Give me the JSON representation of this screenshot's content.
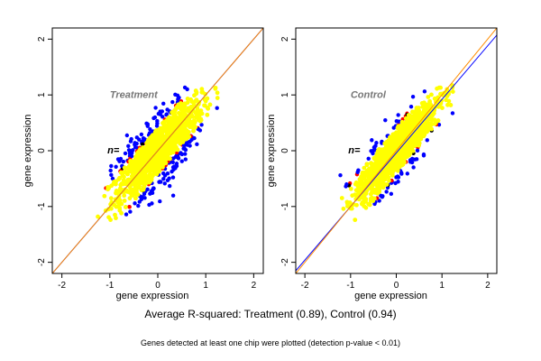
{
  "chart_data": [
    {
      "type": "scatter",
      "panel_label": "Treatment",
      "n_label": "n=",
      "xlabel": "gene expression",
      "ylabel": "gene expression",
      "xlim": [
        -2.2,
        2.2
      ],
      "ylim": [
        -2.2,
        2.2
      ],
      "xticks": [
        "-2",
        "-1",
        "0",
        "1",
        "2"
      ],
      "yticks": [
        "-2",
        "-1",
        "0",
        "1",
        "2"
      ],
      "grid": false,
      "cloud": {
        "center": [
          0.0,
          0.0
        ],
        "x_range": [
          -1.2,
          1.2
        ],
        "y_range": [
          -1.2,
          1.2
        ]
      },
      "point_colors": [
        "#ffff00",
        "#0000ff",
        "#ff0000",
        "#000000"
      ],
      "fit_lines": [
        {
          "color": "#0000ff",
          "slope": 1.0,
          "intercept": 0.0
        },
        {
          "color": "#ff8c00",
          "slope": 1.0,
          "intercept": 0.0
        }
      ]
    },
    {
      "type": "scatter",
      "panel_label": "Control",
      "n_label": "n=",
      "xlabel": "gene expression",
      "ylabel": "gene expression",
      "xlim": [
        -2.2,
        2.2
      ],
      "ylim": [
        -2.2,
        2.2
      ],
      "xticks": [
        "-2",
        "-1",
        "0",
        "1",
        "2"
      ],
      "yticks": [
        "-2",
        "-1",
        "0",
        "1",
        "2"
      ],
      "grid": false,
      "cloud": {
        "center": [
          0.0,
          0.0
        ],
        "x_range": [
          -1.2,
          1.2
        ],
        "y_range": [
          -1.2,
          1.2
        ]
      },
      "point_colors": [
        "#ffff00",
        "#0000ff",
        "#ff0000",
        "#000000"
      ],
      "fit_lines": [
        {
          "color": "#0000ff",
          "slope": 0.96,
          "intercept": -0.04
        },
        {
          "color": "#ff8c00",
          "slope": 1.0,
          "intercept": 0.0
        }
      ]
    }
  ],
  "caption": "Average R-squared: Treatment (0.89), Control (0.94)",
  "footnote": "Genes detected at least one chip were plotted (detection p-value < 0.01)"
}
